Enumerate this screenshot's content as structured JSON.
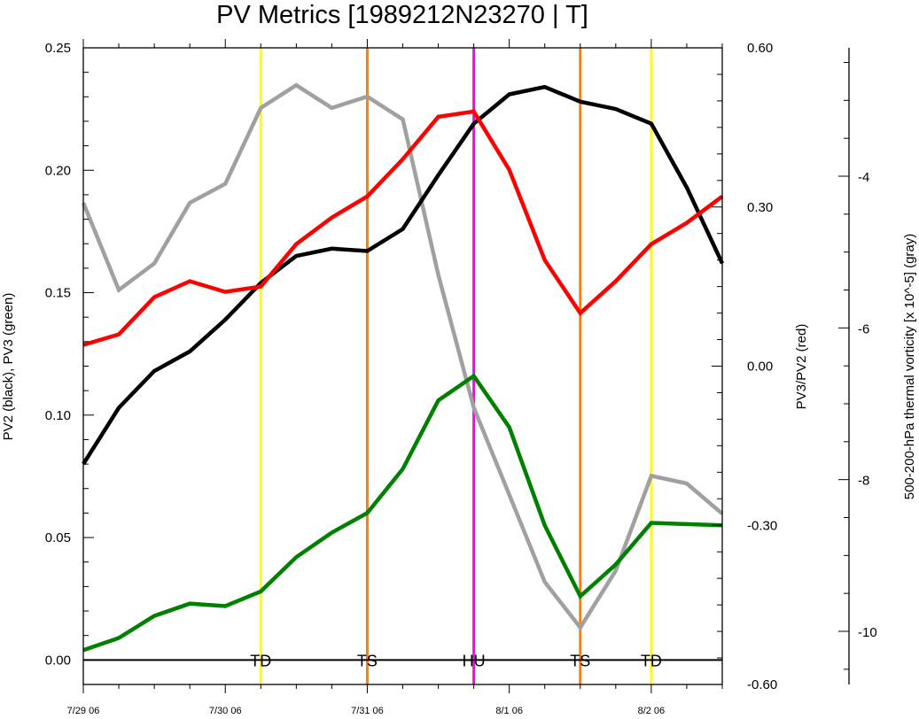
{
  "chart_data": {
    "type": "line",
    "title": "PV Metrics [1989212N23270 | T]",
    "left_axis": {
      "label": "PV2 (black), PV3 (green)",
      "range": [
        -0.01,
        0.25
      ],
      "ticks": [
        "0.00",
        "0.05",
        "0.10",
        "0.15",
        "0.20",
        "0.25"
      ],
      "tick_values": [
        0,
        0.05,
        0.1,
        0.15,
        0.2,
        0.25
      ]
    },
    "mid_axis": {
      "label": "PV3/PV2 (red)",
      "range": [
        -0.6,
        0.6
      ],
      "ticks": [
        "-0.60",
        "-0.30",
        "0.00",
        "0.30",
        "0.60"
      ],
      "tick_values": [
        -0.6,
        -0.3,
        0.0,
        0.3,
        0.6
      ]
    },
    "right_axis": {
      "label": "500-200-hPa thermal vorticity [x 10^-5] (gray)",
      "ticks": [
        "-4",
        "-6",
        "-8",
        "-10"
      ],
      "tick_values": [
        -4,
        -6,
        -8,
        -10
      ]
    },
    "x_axis": {
      "ticks": [
        "7/29 06",
        "7/30 06",
        "7/31 06",
        "8/1 06",
        "8/2 06"
      ],
      "tick_values": [
        0,
        4,
        8,
        12,
        16
      ],
      "range": [
        0,
        18
      ]
    },
    "series": [
      {
        "name": "PV2 (black)",
        "axis": "left",
        "color": "#000000",
        "x": [
          0,
          1,
          2,
          3,
          4,
          5,
          6,
          7,
          8,
          9,
          10,
          11,
          12,
          13,
          14,
          15,
          16,
          17,
          18
        ],
        "values": [
          0.08,
          0.103,
          0.118,
          0.126,
          0.139,
          0.154,
          0.165,
          0.168,
          0.167,
          0.176,
          0.198,
          0.219,
          0.231,
          0.234,
          0.228,
          0.225,
          0.219,
          0.193,
          0.162
        ]
      },
      {
        "name": "PV3 (green)",
        "axis": "left",
        "color": "#008000",
        "x": [
          0,
          1,
          2,
          3,
          4,
          5,
          6,
          7,
          8,
          9,
          10,
          11,
          12,
          13,
          14,
          15,
          16,
          17,
          18
        ],
        "values": [
          0.004,
          0.009,
          0.018,
          0.023,
          0.022,
          0.028,
          0.042,
          0.052,
          0.06,
          0.078,
          0.106,
          0.116,
          0.095,
          0.055,
          0.026,
          0.039,
          0.056,
          0.0555,
          0.055
        ]
      },
      {
        "name": "PV3/PV2 (red)",
        "axis": "mid",
        "color": "#ff0000",
        "x": [
          0,
          1,
          2,
          3,
          4,
          5,
          6,
          7,
          8,
          9,
          10,
          11,
          12,
          13,
          14,
          15,
          16,
          17,
          18
        ],
        "values": [
          0.04,
          0.06,
          0.13,
          0.16,
          0.14,
          0.15,
          0.23,
          0.28,
          0.32,
          0.39,
          0.47,
          0.48,
          0.37,
          0.2,
          0.1,
          0.16,
          0.23,
          0.27,
          0.32
        ]
      },
      {
        "name": "thermal vorticity (gray)",
        "axis": "right",
        "color": "#a0a0a0",
        "x": [
          0,
          1,
          2,
          3,
          4,
          5,
          6,
          7,
          8,
          9,
          10,
          11,
          12,
          13,
          14,
          15,
          16,
          17,
          18
        ],
        "values": [
          -4.35,
          -5.5,
          -5.15,
          -4.35,
          -4.1,
          -3.1,
          -2.8,
          -3.1,
          -2.95,
          -3.25,
          -5.3,
          -7.05,
          -8.2,
          -9.35,
          -9.95,
          -9.2,
          -7.95,
          -8.05,
          -8.45
        ]
      }
    ],
    "vertical_markers": [
      {
        "x": 5,
        "color": "#ffff00",
        "label": "TD"
      },
      {
        "x": 8,
        "color": "#ff8000",
        "label": "TS"
      },
      {
        "x": 11,
        "color": "#ff00ff",
        "label": "HU"
      },
      {
        "x": 14,
        "color": "#ff8000",
        "label": "TS"
      },
      {
        "x": 16,
        "color": "#ffff00",
        "label": "TD"
      }
    ],
    "zero_line": 0,
    "grid": false,
    "legend": "none"
  }
}
